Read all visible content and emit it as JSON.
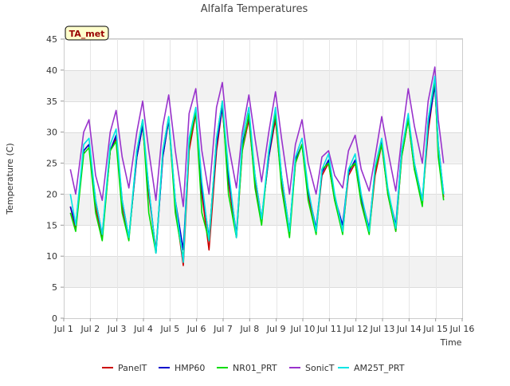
{
  "chart_data": {
    "type": "line",
    "title": "Alfalfa Temperatures",
    "badge": "TA_met",
    "xlabel": "Time",
    "ylabel": "Temperature (C)",
    "xlim": [
      1,
      16
    ],
    "ylim": [
      0,
      45
    ],
    "x_ticks": [
      {
        "v": 1,
        "label": "Jul 1"
      },
      {
        "v": 2,
        "label": "Jul 2"
      },
      {
        "v": 3,
        "label": "Jul 3"
      },
      {
        "v": 4,
        "label": "Jul 4"
      },
      {
        "v": 5,
        "label": "Jul 5"
      },
      {
        "v": 6,
        "label": "Jul 6"
      },
      {
        "v": 7,
        "label": "Jul 7"
      },
      {
        "v": 8,
        "label": "Jul 8"
      },
      {
        "v": 9,
        "label": "Jul 9"
      },
      {
        "v": 10,
        "label": "Jul 10"
      },
      {
        "v": 11,
        "label": "Jul 11"
      },
      {
        "v": 12,
        "label": "Jul 12"
      },
      {
        "v": 13,
        "label": "Jul 13"
      },
      {
        "v": 14,
        "label": "Jul 14"
      },
      {
        "v": 15,
        "label": "Jul 15"
      },
      {
        "v": 16,
        "label": "Jul 16"
      }
    ],
    "y_ticks": [
      {
        "v": 0,
        "label": "0"
      },
      {
        "v": 5,
        "label": "5"
      },
      {
        "v": 10,
        "label": "10"
      },
      {
        "v": 15,
        "label": "15"
      },
      {
        "v": 20,
        "label": "20"
      },
      {
        "v": 25,
        "label": "25"
      },
      {
        "v": 30,
        "label": "30"
      },
      {
        "v": 35,
        "label": "35"
      },
      {
        "v": 40,
        "label": "40"
      },
      {
        "v": 45,
        "label": "45"
      }
    ],
    "grid": true,
    "legend_position": "bottom",
    "series": [
      {
        "name": "PanelT",
        "color": "#cc0000",
        "x": [
          1.25,
          1.45,
          1.75,
          1.95,
          2.2,
          2.45,
          2.75,
          2.97,
          3.2,
          3.45,
          3.75,
          3.97,
          4.2,
          4.47,
          4.73,
          4.95,
          5.2,
          5.5,
          5.72,
          5.97,
          6.2,
          6.47,
          6.75,
          6.97,
          7.2,
          7.5,
          7.72,
          7.97,
          8.2,
          8.45,
          8.72,
          8.97,
          9.2,
          9.5,
          9.72,
          9.97,
          10.2,
          10.5,
          10.72,
          10.97,
          11.2,
          11.5,
          11.72,
          11.97,
          12.2,
          12.5,
          12.72,
          12.97,
          13.2,
          13.5,
          13.72,
          13.97,
          14.2,
          14.5,
          14.72,
          14.97,
          15.1,
          15.3
        ],
        "y": [
          18,
          14.5,
          27,
          28,
          18,
          13,
          27,
          29,
          18,
          13,
          26,
          31,
          20,
          11,
          26,
          32,
          18,
          8.5,
          27,
          33,
          20,
          11,
          27,
          34,
          22,
          13,
          27,
          32,
          22,
          16,
          26,
          32,
          22,
          14,
          25,
          28,
          20,
          14,
          23,
          25,
          19,
          14,
          23,
          25,
          19,
          14,
          23,
          28,
          20,
          14,
          26,
          32,
          24,
          19,
          30,
          38,
          27,
          19.5
        ]
      },
      {
        "name": "HMP60",
        "color": "#0000cc",
        "x": [
          1.25,
          1.45,
          1.75,
          1.95,
          2.2,
          2.45,
          2.75,
          2.97,
          3.2,
          3.45,
          3.75,
          3.97,
          4.2,
          4.47,
          4.73,
          4.95,
          5.2,
          5.5,
          5.72,
          5.97,
          6.2,
          6.47,
          6.75,
          6.97,
          7.2,
          7.5,
          7.72,
          7.97,
          8.2,
          8.45,
          8.72,
          8.97,
          9.2,
          9.5,
          9.72,
          9.97,
          10.2,
          10.5,
          10.72,
          10.97,
          11.2,
          11.5,
          11.72,
          11.97,
          12.2,
          12.5,
          12.72,
          12.97,
          13.2,
          13.5,
          13.72,
          13.97,
          14.2,
          14.5,
          14.72,
          14.97,
          15.1,
          15.3
        ],
        "y": [
          18,
          15,
          27,
          28,
          19,
          13.5,
          27,
          29.5,
          19,
          13,
          26,
          31,
          21,
          10.5,
          26,
          32,
          19,
          11,
          28,
          33.5,
          21,
          13,
          28,
          34,
          23,
          13.5,
          28,
          32.5,
          23,
          16,
          26,
          33,
          23,
          14,
          25.5,
          28,
          20.5,
          14.5,
          23.5,
          25.5,
          19.5,
          15,
          23.5,
          25.5,
          19.5,
          14.5,
          24,
          28.5,
          20.5,
          15,
          27,
          32.5,
          25,
          19,
          31,
          37.5,
          28,
          20
        ]
      },
      {
        "name": "NR01_PRT",
        "color": "#00dd00",
        "x": [
          1.25,
          1.45,
          1.75,
          1.95,
          2.2,
          2.45,
          2.75,
          2.97,
          3.2,
          3.45,
          3.75,
          3.97,
          4.2,
          4.47,
          4.73,
          4.95,
          5.2,
          5.5,
          5.72,
          5.97,
          6.2,
          6.47,
          6.75,
          6.97,
          7.2,
          7.5,
          7.72,
          7.97,
          8.2,
          8.45,
          8.72,
          8.97,
          9.2,
          9.5,
          9.72,
          9.97,
          10.2,
          10.5,
          10.72,
          10.97,
          11.2,
          11.5,
          11.72,
          11.97,
          12.2,
          12.5,
          12.72,
          12.97,
          13.2,
          13.5,
          13.72,
          13.97,
          14.2,
          14.5,
          14.72,
          14.97,
          15.1,
          15.3
        ],
        "y": [
          17,
          14,
          26.5,
          27.5,
          17,
          12.5,
          27,
          28.5,
          17,
          12.5,
          27,
          32,
          17,
          10.5,
          27,
          32.5,
          17,
          9.5,
          28,
          33.5,
          17,
          12.5,
          29,
          35,
          20,
          13,
          27,
          33,
          21,
          15,
          27,
          33,
          21,
          13,
          25,
          28,
          19,
          13.5,
          24,
          25,
          19,
          13.5,
          24,
          25,
          18.5,
          13.5,
          24,
          28,
          20,
          14,
          26,
          32,
          24,
          18,
          32,
          38.5,
          26,
          19
        ]
      },
      {
        "name": "SonicT",
        "color": "#9933cc",
        "x": [
          1.25,
          1.45,
          1.75,
          1.95,
          2.2,
          2.45,
          2.75,
          2.97,
          3.2,
          3.45,
          3.75,
          3.97,
          4.2,
          4.47,
          4.73,
          4.95,
          5.2,
          5.5,
          5.72,
          5.97,
          6.2,
          6.47,
          6.75,
          6.97,
          7.2,
          7.5,
          7.72,
          7.97,
          8.2,
          8.45,
          8.72,
          8.97,
          9.2,
          9.5,
          9.72,
          9.97,
          10.2,
          10.5,
          10.72,
          10.97,
          11.2,
          11.5,
          11.72,
          11.97,
          12.2,
          12.5,
          12.72,
          12.97,
          13.2,
          13.5,
          13.72,
          13.97,
          14.2,
          14.5,
          14.72,
          14.97,
          15.1,
          15.3
        ],
        "y": [
          24,
          20,
          30,
          32,
          23,
          19,
          30,
          33.5,
          26,
          21,
          30,
          35,
          27,
          19,
          31,
          36,
          27,
          18,
          33,
          37,
          27,
          20,
          34,
          38,
          28,
          21,
          30,
          36,
          29,
          22,
          30,
          36.5,
          29,
          20,
          28,
          32,
          25,
          20,
          26,
          27,
          23,
          21,
          27,
          29.5,
          24,
          20.5,
          26,
          32.5,
          27,
          20.5,
          29,
          37,
          31,
          25,
          35,
          40.5,
          32,
          25
        ]
      },
      {
        "name": "AM25T_PRT",
        "color": "#00e5e5",
        "x": [
          1.25,
          1.45,
          1.75,
          1.95,
          2.2,
          2.45,
          2.75,
          2.97,
          3.2,
          3.45,
          3.75,
          3.97,
          4.2,
          4.47,
          4.73,
          4.95,
          5.2,
          5.5,
          5.72,
          5.97,
          6.2,
          6.47,
          6.75,
          6.97,
          7.2,
          7.5,
          7.72,
          7.97,
          8.2,
          8.45,
          8.72,
          8.97,
          9.2,
          9.5,
          9.72,
          9.97,
          10.2,
          10.5,
          10.72,
          10.97,
          11.2,
          11.5,
          11.72,
          11.97,
          12.2,
          12.5,
          12.72,
          12.97,
          13.2,
          13.5,
          13.72,
          13.97,
          14.2,
          14.5,
          14.72,
          14.97,
          15.1,
          15.3
        ],
        "y": [
          20,
          15,
          28,
          29,
          19,
          13.5,
          28,
          30.5,
          19,
          13,
          27,
          32,
          21,
          10.5,
          27,
          32.5,
          19,
          9,
          29,
          34,
          22,
          12.5,
          29,
          35,
          24,
          13,
          29,
          34,
          23,
          16,
          27,
          34,
          23,
          14,
          26,
          29,
          21,
          14,
          24,
          26.5,
          20,
          14,
          24,
          26.5,
          20,
          14,
          24.5,
          29,
          21,
          14.5,
          27,
          33,
          25,
          19,
          32,
          39,
          28,
          20
        ]
      }
    ]
  }
}
